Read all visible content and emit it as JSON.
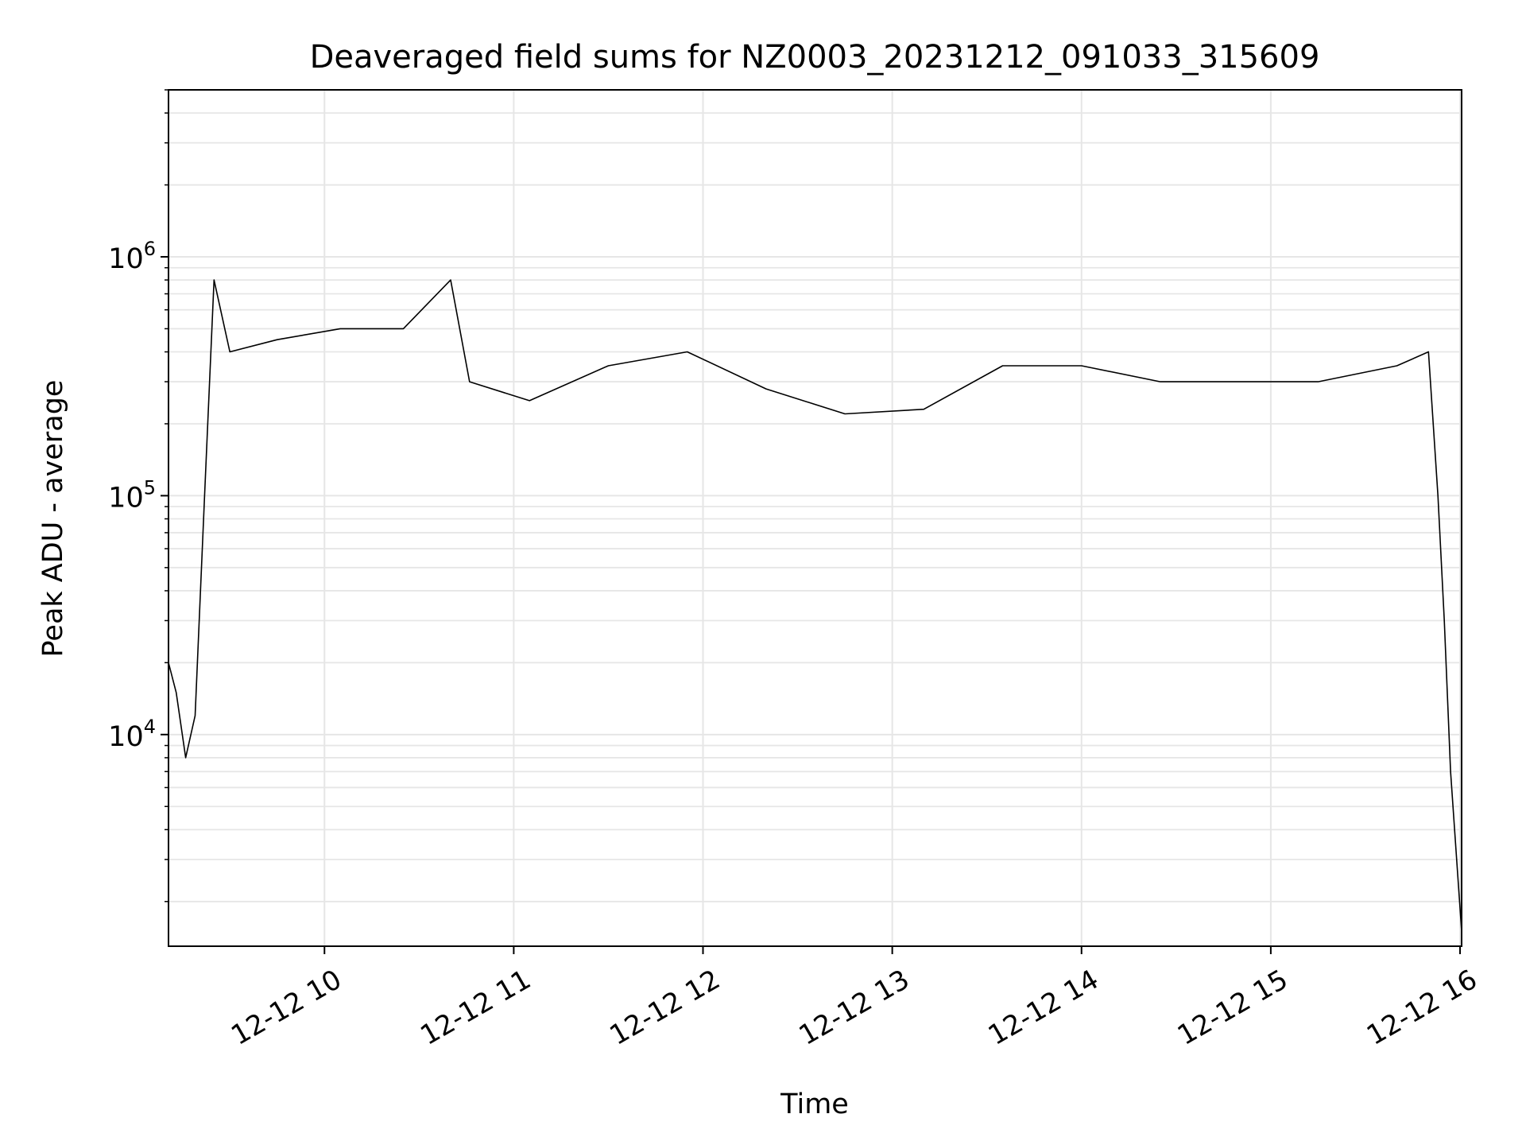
{
  "chart_data": {
    "type": "line",
    "title": "Deaveraged field sums for NZ0003_20231212_091033_315609",
    "xlabel": "Time",
    "ylabel": "Peak ADU - average",
    "yscale": "log",
    "ylim": [
      1300,
      5000000
    ],
    "xlim": [
      "2023-12-12T09:10:33",
      "2023-12-12T16:00:30"
    ],
    "grid": true,
    "line_color": "#000000",
    "grid_color": "#e6e6e6",
    "x_ticks": [
      {
        "value": "2023-12-12T10:00:00",
        "label": "12-12 10"
      },
      {
        "value": "2023-12-12T11:00:00",
        "label": "12-12 11"
      },
      {
        "value": "2023-12-12T12:00:00",
        "label": "12-12 12"
      },
      {
        "value": "2023-12-12T13:00:00",
        "label": "12-12 13"
      },
      {
        "value": "2023-12-12T14:00:00",
        "label": "12-12 14"
      },
      {
        "value": "2023-12-12T15:00:00",
        "label": "12-12 15"
      },
      {
        "value": "2023-12-12T16:00:00",
        "label": "12-12 16"
      }
    ],
    "y_ticks": [
      {
        "value": 10000,
        "base": "10",
        "exp": "4"
      },
      {
        "value": 100000,
        "base": "10",
        "exp": "5"
      },
      {
        "value": 1000000,
        "base": "10",
        "exp": "6"
      }
    ],
    "series": [
      {
        "name": "",
        "x": [
          "2023-12-12T09:10:33",
          "2023-12-12T09:13:00",
          "2023-12-12T09:16:00",
          "2023-12-12T09:19:00",
          "2023-12-12T09:22:00",
          "2023-12-12T09:25:00",
          "2023-12-12T09:30:00",
          "2023-12-12T09:45:00",
          "2023-12-12T10:05:00",
          "2023-12-12T10:25:00",
          "2023-12-12T10:40:00",
          "2023-12-12T10:46:00",
          "2023-12-12T11:05:00",
          "2023-12-12T11:30:00",
          "2023-12-12T11:55:00",
          "2023-12-12T12:20:00",
          "2023-12-12T12:45:00",
          "2023-12-12T13:10:00",
          "2023-12-12T13:35:00",
          "2023-12-12T14:00:00",
          "2023-12-12T14:25:00",
          "2023-12-12T14:50:00",
          "2023-12-12T15:15:00",
          "2023-12-12T15:40:00",
          "2023-12-12T15:50:00",
          "2023-12-12T15:53:00",
          "2023-12-12T15:55:00",
          "2023-12-12T15:57:00",
          "2023-12-12T16:00:30"
        ],
        "y": [
          20000,
          15000,
          8000,
          12000,
          100000,
          800000,
          400000,
          450000,
          500000,
          500000,
          800000,
          300000,
          250000,
          350000,
          400000,
          280000,
          220000,
          230000,
          350000,
          350000,
          300000,
          300000,
          300000,
          350000,
          400000,
          100000,
          30000,
          7000,
          1500
        ]
      }
    ]
  }
}
